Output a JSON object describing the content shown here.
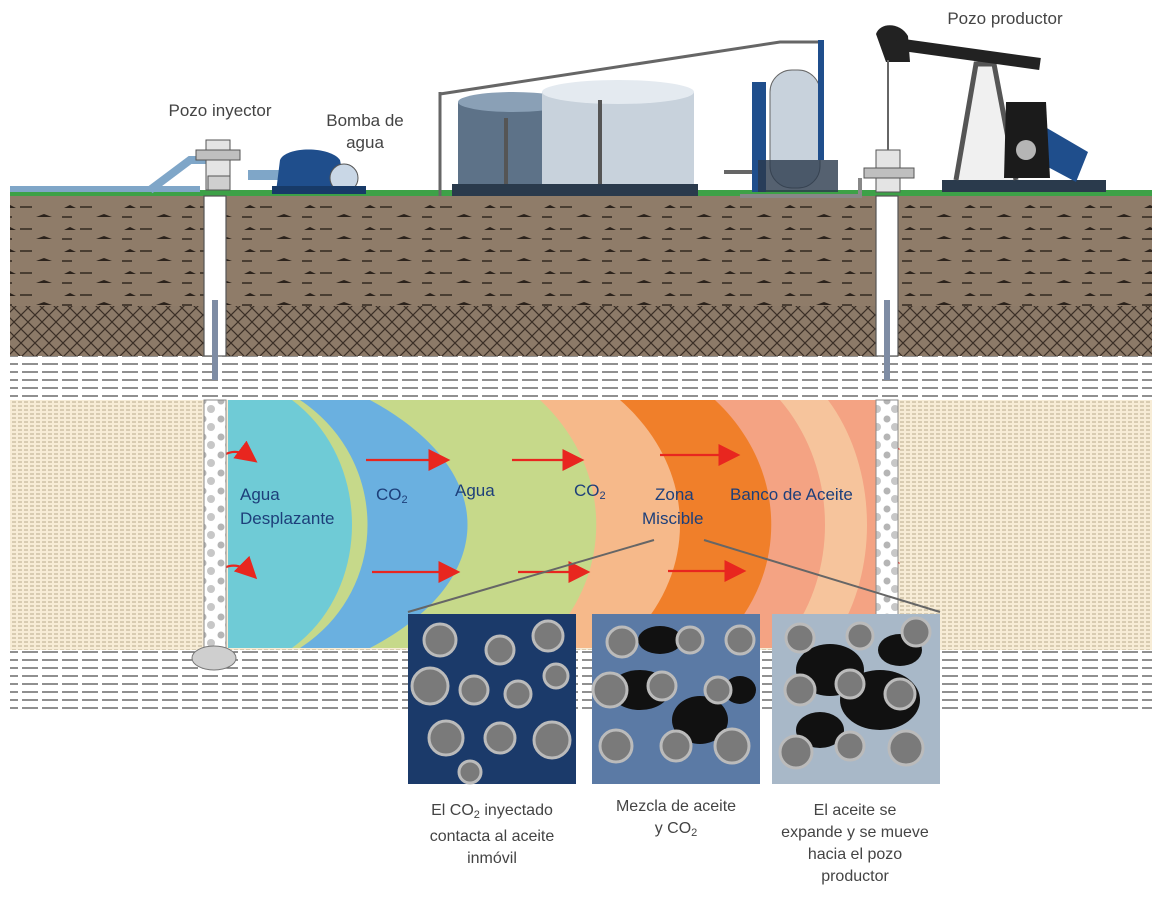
{
  "labels": {
    "injector_well": "Pozo inyector",
    "water_pump_l1": "Bomba de",
    "water_pump_l2": "agua",
    "producer_well": "Pozo productor"
  },
  "zones": {
    "water_displacing_l1": "Agua",
    "water_displacing_l2": "Desplazante",
    "co2_a_base": "CO",
    "co2_a_sub": "2",
    "water": "Agua",
    "co2_b_base": "CO",
    "co2_b_sub": "2",
    "miscible_l1": "Zona",
    "miscible_l2": "Miscible",
    "oil_bank": "Banco de Aceite"
  },
  "captions": {
    "c1_l1_pre": "El CO",
    "c1_l1_sub": "2",
    "c1_l1_post": " inyectado",
    "c1_l2": "contacta al aceite",
    "c1_l3": "inmóvil",
    "c2_l1": "Mezcla de aceite",
    "c2_l2_pre": "y CO",
    "c2_l2_sub": "2",
    "c3_l1": "El aceite se",
    "c3_l2": "expande y se mueve",
    "c3_l3": "hacia el pozo",
    "c3_l4": "productor"
  },
  "colors": {
    "water_zone": "#6fcbd6",
    "co2_zone": "#c6d98a",
    "water_zone_2": "#6ab0e0",
    "miscible_light": "#f6b98a",
    "miscible_dark": "#f07f2a",
    "oil_bank": "#f4a383",
    "arrow": "#e8261f",
    "ground": "#7a6a5a",
    "text_zone": "#1d3f7a"
  }
}
